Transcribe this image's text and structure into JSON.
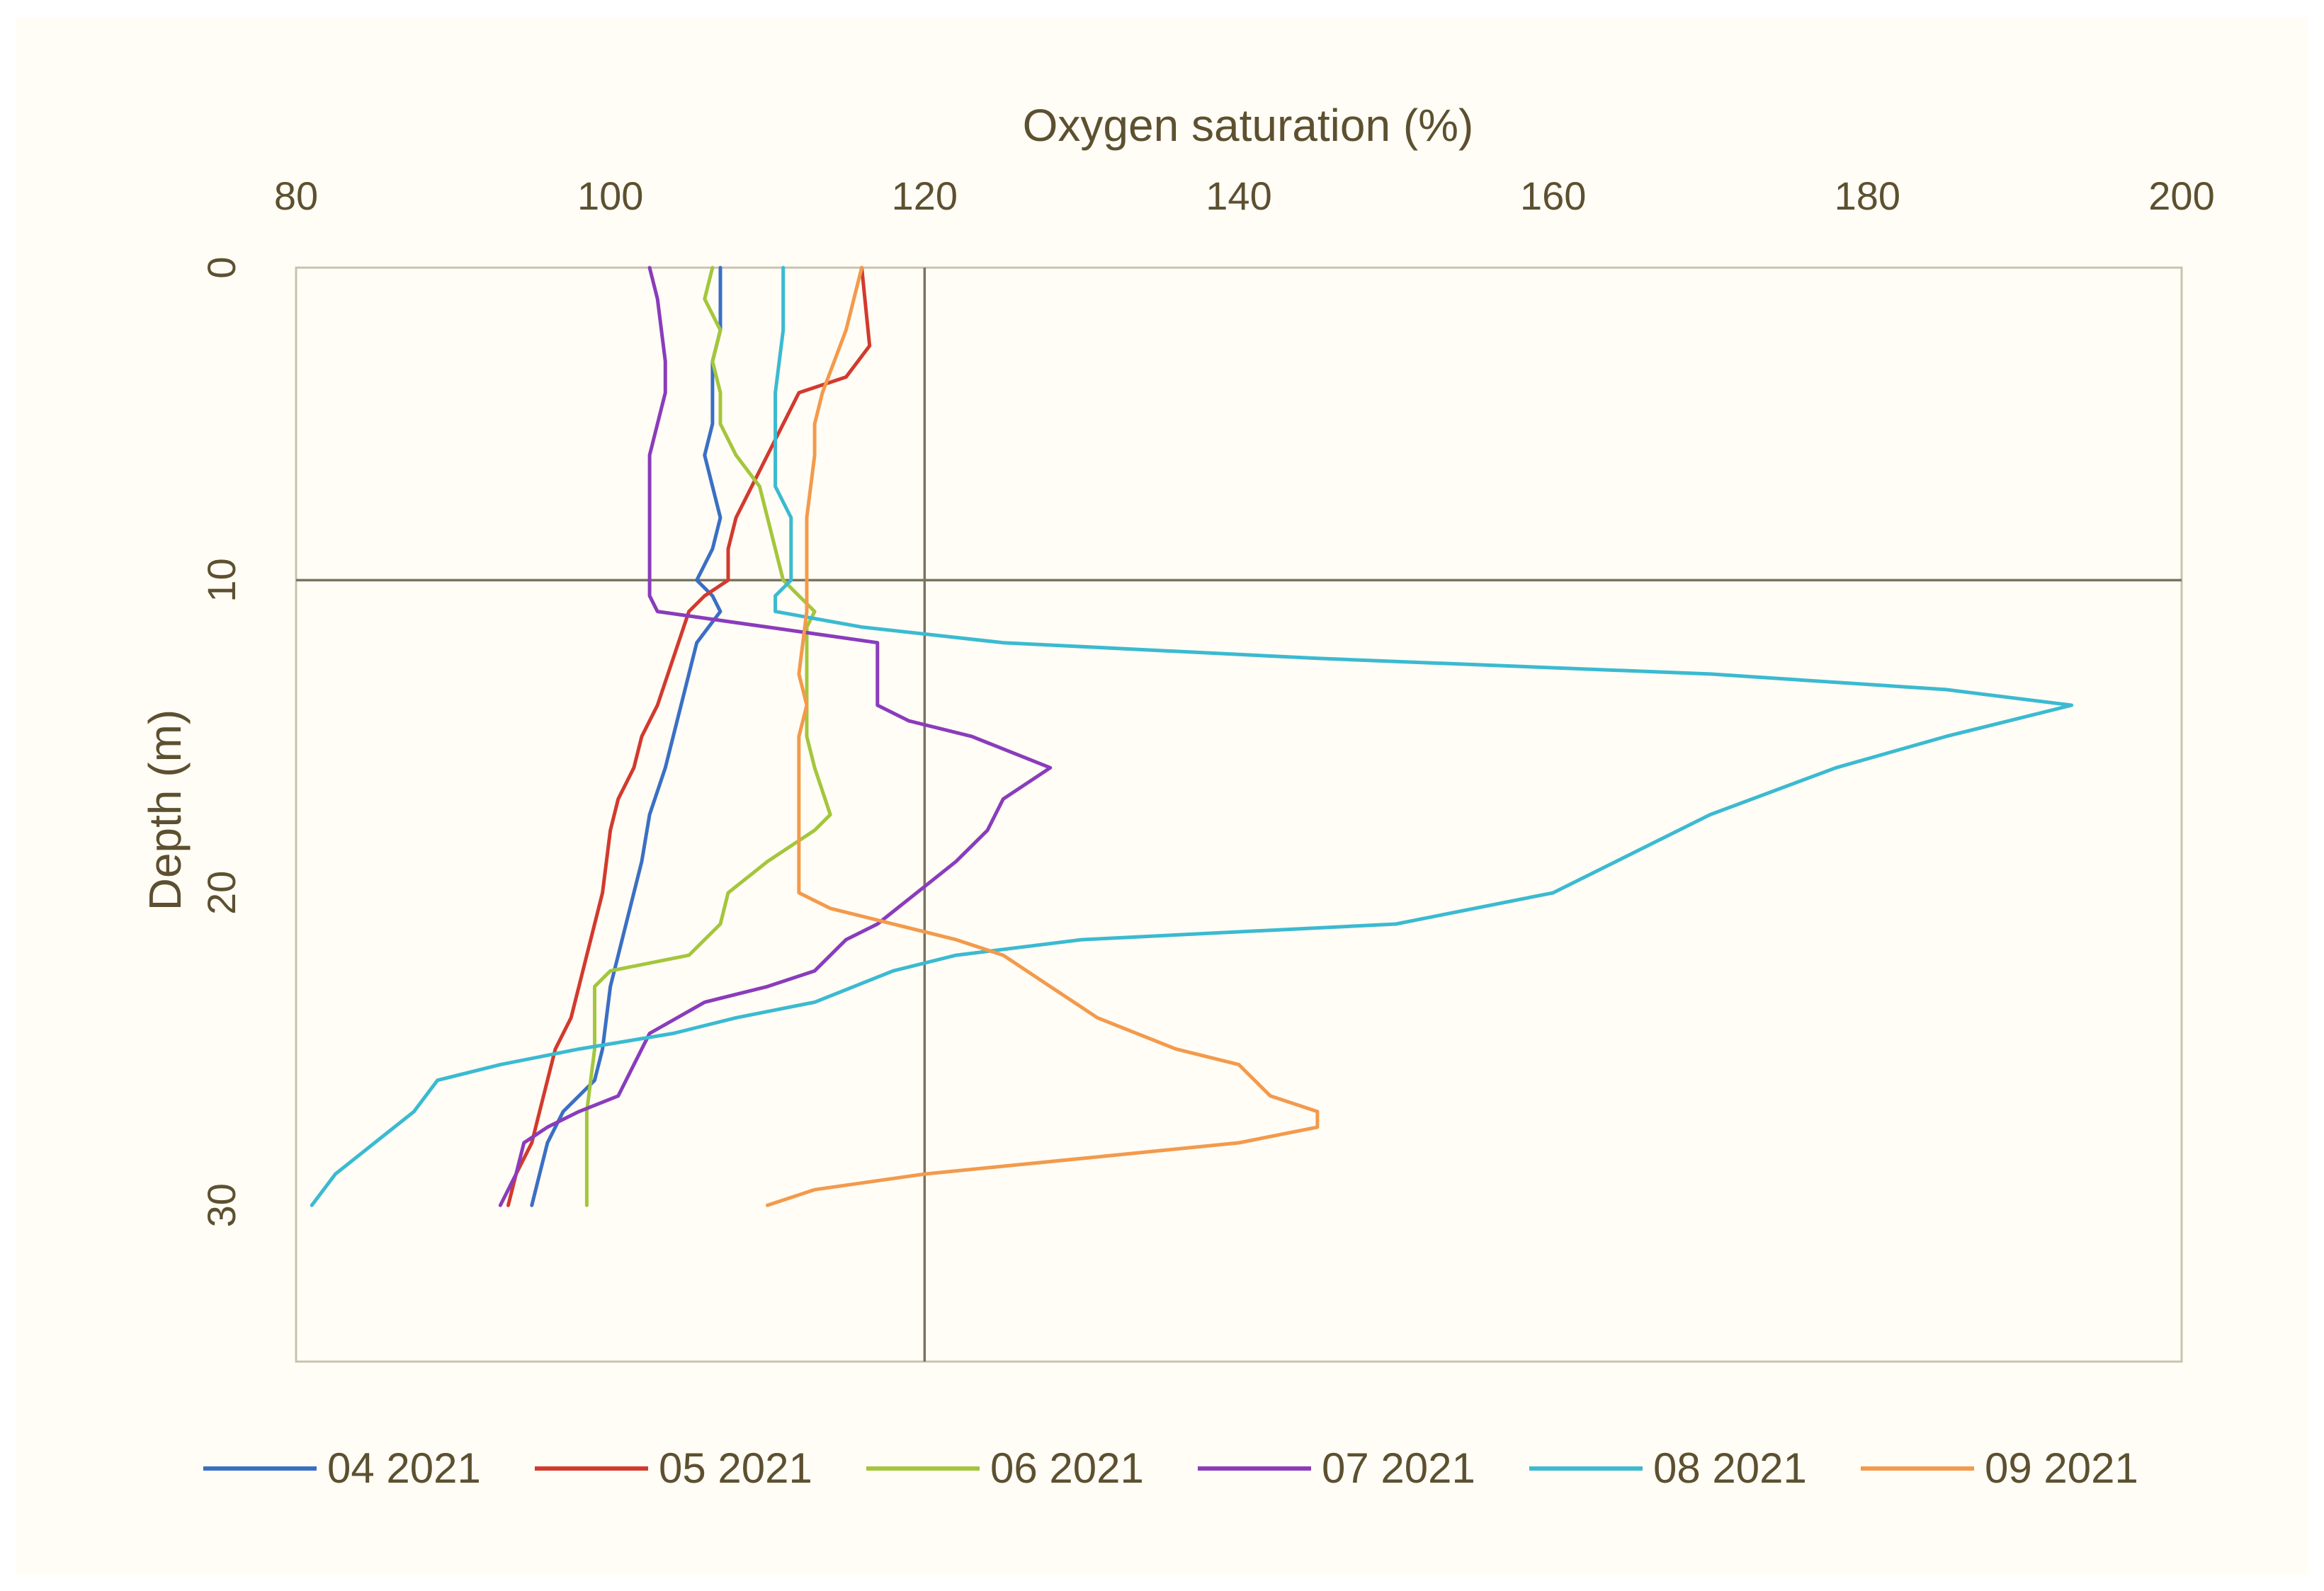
{
  "chart_data": {
    "type": "line",
    "title": "",
    "xlabel": "Oxygen saturation (%)",
    "ylabel": "Depth (m)",
    "xlim": [
      80,
      200
    ],
    "ylim": [
      0,
      35
    ],
    "x_ticks": [
      "80",
      "100",
      "120",
      "140",
      "160",
      "180",
      "200"
    ],
    "y_ticks": [
      "0",
      "10",
      "20",
      "30"
    ],
    "reference_lines": {
      "x": 120,
      "y": 10
    },
    "legend_position": "bottom",
    "series": [
      {
        "name": "04 2021",
        "color": "#3a6fc4",
        "points": [
          [
            107,
            0
          ],
          [
            107,
            2
          ],
          [
            106.5,
            3
          ],
          [
            106.5,
            5
          ],
          [
            106,
            6
          ],
          [
            106.5,
            7
          ],
          [
            107,
            8
          ],
          [
            106.5,
            9
          ],
          [
            105.5,
            10
          ],
          [
            106.5,
            10.5
          ],
          [
            107,
            11
          ],
          [
            105.5,
            12
          ],
          [
            105,
            13
          ],
          [
            104.5,
            14
          ],
          [
            104,
            15
          ],
          [
            103.5,
            16
          ],
          [
            102.5,
            17.5
          ],
          [
            102,
            19
          ],
          [
            101.5,
            20
          ],
          [
            101,
            21
          ],
          [
            100.5,
            22
          ],
          [
            100,
            23
          ],
          [
            99.5,
            25
          ],
          [
            99,
            26
          ],
          [
            97,
            27
          ],
          [
            96,
            28
          ],
          [
            95.5,
            29
          ],
          [
            95,
            30
          ]
        ]
      },
      {
        "name": "05 2021",
        "color": "#d23a2e",
        "points": [
          [
            116,
            0
          ],
          [
            116.5,
            2.5
          ],
          [
            115,
            3.5
          ],
          [
            112,
            4
          ],
          [
            111,
            5
          ],
          [
            109.5,
            6.5
          ],
          [
            108,
            8
          ],
          [
            107.5,
            9
          ],
          [
            107.5,
            10
          ],
          [
            106,
            10.5
          ],
          [
            105,
            11
          ],
          [
            104,
            12.5
          ],
          [
            103,
            14
          ],
          [
            102,
            15
          ],
          [
            101.5,
            16
          ],
          [
            100.5,
            17
          ],
          [
            100,
            18
          ],
          [
            99.5,
            20
          ],
          [
            99,
            21
          ],
          [
            98.5,
            22
          ],
          [
            98,
            23
          ],
          [
            97.5,
            24
          ],
          [
            96.5,
            25
          ],
          [
            96,
            26
          ],
          [
            95.5,
            27
          ],
          [
            95,
            28
          ],
          [
            94,
            29
          ],
          [
            93.5,
            30
          ]
        ]
      },
      {
        "name": "06 2021",
        "color": "#a4c63c",
        "points": [
          [
            106.5,
            0
          ],
          [
            106,
            1
          ],
          [
            107,
            2
          ],
          [
            106.5,
            3
          ],
          [
            107,
            4
          ],
          [
            107,
            5
          ],
          [
            108,
            6
          ],
          [
            109.5,
            7
          ],
          [
            110,
            8
          ],
          [
            110.5,
            9
          ],
          [
            111,
            10
          ],
          [
            112,
            10.5
          ],
          [
            113,
            11
          ],
          [
            112.5,
            11.5
          ],
          [
            112.5,
            12
          ],
          [
            112.5,
            13
          ],
          [
            112.5,
            15
          ],
          [
            113,
            16
          ],
          [
            114,
            17.5
          ],
          [
            113,
            18
          ],
          [
            110,
            19
          ],
          [
            107.5,
            20
          ],
          [
            107,
            21
          ],
          [
            105,
            22
          ],
          [
            100,
            22.5
          ],
          [
            99,
            23
          ],
          [
            99,
            25
          ],
          [
            98.5,
            27
          ],
          [
            98.5,
            30
          ]
        ]
      },
      {
        "name": "07 2021",
        "color": "#8a3cbb",
        "points": [
          [
            102.5,
            0
          ],
          [
            103,
            1
          ],
          [
            103.5,
            3
          ],
          [
            103.5,
            4
          ],
          [
            103,
            5
          ],
          [
            102.5,
            6
          ],
          [
            102.5,
            8
          ],
          [
            102.5,
            10
          ],
          [
            102.5,
            10.5
          ],
          [
            103,
            11
          ],
          [
            110,
            11.5
          ],
          [
            117,
            12
          ],
          [
            117,
            13
          ],
          [
            117,
            14
          ],
          [
            119,
            14.5
          ],
          [
            123,
            15
          ],
          [
            128,
            16
          ],
          [
            125,
            17
          ],
          [
            124,
            18
          ],
          [
            122,
            19
          ],
          [
            119.5,
            20
          ],
          [
            117,
            21
          ],
          [
            115,
            21.5
          ],
          [
            113,
            22.5
          ],
          [
            110,
            23
          ],
          [
            106,
            23.5
          ],
          [
            102.5,
            24.5
          ],
          [
            101.5,
            25.5
          ],
          [
            100.5,
            26.5
          ],
          [
            98,
            27
          ],
          [
            96,
            27.5
          ],
          [
            94.5,
            28
          ],
          [
            94,
            29
          ],
          [
            93,
            30
          ]
        ]
      },
      {
        "name": "08 2021",
        "color": "#3bbad1",
        "points": [
          [
            111,
            0
          ],
          [
            111,
            2
          ],
          [
            110.5,
            4
          ],
          [
            110.5,
            5.5
          ],
          [
            110.5,
            7
          ],
          [
            111.5,
            8
          ],
          [
            111.5,
            9
          ],
          [
            111.5,
            10
          ],
          [
            110.5,
            10.5
          ],
          [
            110.5,
            11
          ],
          [
            116,
            11.5
          ],
          [
            125,
            12
          ],
          [
            145,
            12.5
          ],
          [
            170,
            13
          ],
          [
            185,
            13.5
          ],
          [
            193,
            14
          ],
          [
            185,
            15
          ],
          [
            178,
            16
          ],
          [
            170,
            17.5
          ],
          [
            164,
            19
          ],
          [
            160,
            20
          ],
          [
            150,
            21
          ],
          [
            130,
            21.5
          ],
          [
            122,
            22
          ],
          [
            118,
            22.5
          ],
          [
            113,
            23.5
          ],
          [
            108,
            24
          ],
          [
            104,
            24.5
          ],
          [
            98,
            25
          ],
          [
            93,
            25.5
          ],
          [
            89,
            26
          ],
          [
            87.5,
            27
          ],
          [
            85,
            28
          ],
          [
            82.5,
            29
          ],
          [
            81,
            30
          ]
        ]
      },
      {
        "name": "09 2021",
        "color": "#f39a4c",
        "points": [
          [
            116,
            0
          ],
          [
            115.5,
            1
          ],
          [
            115,
            2
          ],
          [
            113.5,
            4
          ],
          [
            113,
            5
          ],
          [
            113,
            6
          ],
          [
            112.5,
            8
          ],
          [
            112.5,
            10
          ],
          [
            112.5,
            11
          ],
          [
            112,
            13
          ],
          [
            112.5,
            14
          ],
          [
            112,
            15
          ],
          [
            112,
            17
          ],
          [
            112,
            19
          ],
          [
            112,
            20
          ],
          [
            114,
            20.5
          ],
          [
            118,
            21
          ],
          [
            122,
            21.5
          ],
          [
            125,
            22
          ],
          [
            128,
            23
          ],
          [
            131,
            24
          ],
          [
            136,
            25
          ],
          [
            140,
            25.5
          ],
          [
            142,
            26.5
          ],
          [
            145,
            27
          ],
          [
            145,
            27.5
          ],
          [
            140,
            28
          ],
          [
            130,
            28.5
          ],
          [
            120,
            29
          ],
          [
            113,
            29.5
          ],
          [
            110,
            30
          ]
        ]
      }
    ]
  }
}
